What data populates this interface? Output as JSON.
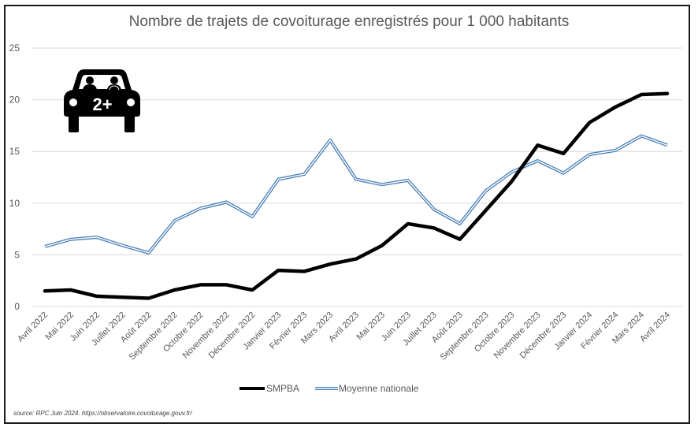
{
  "chart_data": {
    "type": "line",
    "title": "Nombre de trajets de covoiturage enregistrés pour 1 000 habitants",
    "xlabel": "",
    "ylabel": "",
    "ylim": [
      0,
      25
    ],
    "yticks": [
      "0",
      "5",
      "10",
      "15",
      "20",
      "25"
    ],
    "ytick_values": [
      0,
      5,
      10,
      15,
      20,
      25
    ],
    "grid": true,
    "legend_position": "bottom",
    "categories": [
      "Avril 2022",
      "Mai 2022",
      "Juin 2022",
      "Juillet 2022",
      "Août 2022",
      "Septembre 2022",
      "Octobre 2022",
      "Novembre 2022",
      "Décembre 2022",
      "Janvier 2023",
      "Février 2023",
      "Mars 2023",
      "Avril 2023",
      "Mai 2023",
      "Juin 2023",
      "Juillet 2023",
      "Août 2023",
      "Septembre 2023",
      "Octobre 2023",
      "Novembre 2023",
      "Décembre 2023",
      "Janvier 2024",
      "Février 2024",
      "Mars 2024",
      "Avril 2024"
    ],
    "series": [
      {
        "name": "SMPBA",
        "color": "#000000",
        "style": "solid-thick",
        "values": [
          1.5,
          1.6,
          1.0,
          0.9,
          0.8,
          1.6,
          2.1,
          2.1,
          1.6,
          3.5,
          3.4,
          4.1,
          4.6,
          5.9,
          8.0,
          7.6,
          6.5,
          9.3,
          12.1,
          15.6,
          14.8,
          17.8,
          19.3,
          20.5,
          20.6
        ]
      },
      {
        "name": "Moyenne nationale",
        "color": "#4a7fb5",
        "style": "double",
        "values": [
          5.8,
          6.5,
          6.7,
          5.9,
          5.2,
          8.3,
          9.5,
          10.1,
          8.7,
          12.3,
          12.8,
          16.1,
          12.3,
          11.8,
          12.2,
          9.4,
          8.0,
          11.2,
          13.0,
          14.1,
          12.9,
          14.7,
          15.1,
          16.5,
          15.6
        ]
      }
    ],
    "icon": {
      "name": "carpool-car-icon",
      "label": "2+"
    }
  },
  "source": "source: RPC Juin 2024. https://observatoire.covoiturage.gouv.fr/"
}
